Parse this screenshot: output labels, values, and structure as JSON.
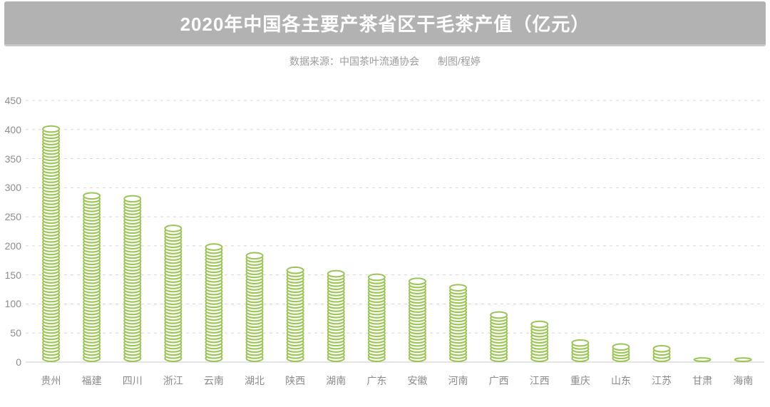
{
  "banner": {
    "title": "2020年中国各主要产茶省区干毛茶产值（亿元）",
    "bg_color": "#b2b2b2",
    "text_color": "#ffffff"
  },
  "subtitle": {
    "source": "数据来源：中国茶叶流通协会",
    "author": "制图/程婷"
  },
  "chart_data": {
    "type": "bar",
    "style": "coin-stack-pictograph",
    "title": "2020年中国各主要产茶省区干毛茶产值（亿元）",
    "unit": "亿元",
    "categories": [
      "贵州",
      "福建",
      "四川",
      "浙江",
      "云南",
      "湖北",
      "陕西",
      "湖南",
      "广东",
      "安徽",
      "河南",
      "广西",
      "江西",
      "重庆",
      "山东",
      "江苏",
      "甘肃",
      "海南"
    ],
    "values": [
      405,
      290,
      285,
      234,
      202,
      187,
      162,
      156,
      150,
      143,
      132,
      85,
      69,
      37,
      30,
      27,
      6,
      4
    ],
    "xlabel": "",
    "ylabel": "",
    "ylim": [
      0,
      450
    ],
    "yticks": [
      0,
      50,
      100,
      150,
      200,
      250,
      300,
      350,
      400,
      450
    ],
    "grid": "horizontal-dashed",
    "legend": "none",
    "colors": {
      "coin_stroke": "#9ac455",
      "coin_fill": "#fbfdf4",
      "coin_top_fill": "#ffffff",
      "gridline": "#d8d8d8",
      "axis_line": "#c8c8c8",
      "tick_text": "#8c8c8c"
    }
  }
}
